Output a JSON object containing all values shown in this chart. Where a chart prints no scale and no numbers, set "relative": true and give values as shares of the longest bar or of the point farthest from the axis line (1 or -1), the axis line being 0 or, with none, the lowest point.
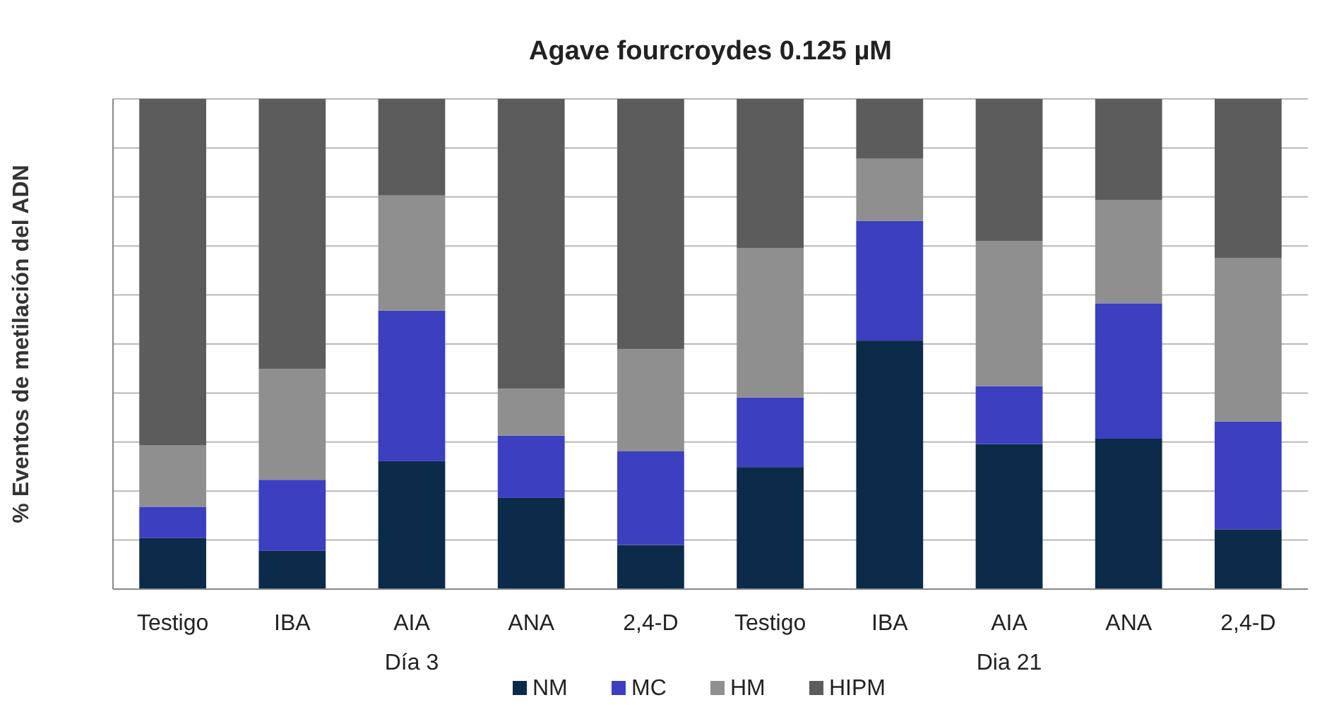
{
  "chart_data": {
    "type": "bar",
    "stacked": true,
    "relative": true,
    "title": "Agave fourcroydes 0.125 µM",
    "ylabel": "% Eventos de metilación del ADN",
    "categories": [
      "Testigo",
      "IBA",
      "AIA",
      "ANA",
      "2,4-D",
      "Testigo",
      "IBA",
      "AIA",
      "ANA",
      "2,4-D"
    ],
    "series": [
      {
        "name": "NM",
        "color": "#0c2b4b",
        "values": [
          0.104,
          0.078,
          0.261,
          0.186,
          0.09,
          0.249,
          0.507,
          0.296,
          0.307,
          0.122
        ]
      },
      {
        "name": "MC",
        "color": "#3b3fc0",
        "values": [
          0.064,
          0.145,
          0.307,
          0.127,
          0.191,
          0.142,
          0.244,
          0.118,
          0.276,
          0.22
        ]
      },
      {
        "name": "HM",
        "color": "#8f8f8f",
        "values": [
          0.125,
          0.226,
          0.235,
          0.096,
          0.209,
          0.305,
          0.127,
          0.296,
          0.211,
          0.333
        ]
      },
      {
        "name": "HIPM",
        "color": "#5c5c5c",
        "values": [
          0.707,
          0.551,
          0.197,
          0.591,
          0.51,
          0.304,
          0.122,
          0.29,
          0.206,
          0.325
        ]
      }
    ],
    "grid": "y",
    "legend": "bottom",
    "annotations": [
      "Día 3",
      "Dia 21"
    ]
  }
}
